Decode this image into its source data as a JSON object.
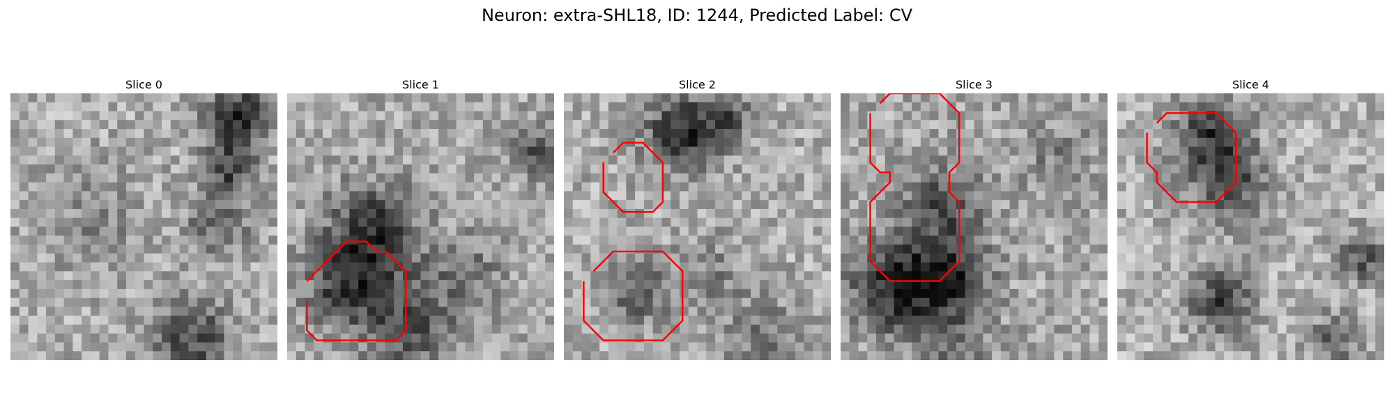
{
  "figure": {
    "title": "Neuron: extra-SHL18, ID: 1244, Predicted Label: CV"
  },
  "slices": [
    {
      "label": "Slice 0",
      "contours": []
    },
    {
      "label": "Slice 1",
      "contours": [
        [
          [
            21,
            2
          ],
          [
            24,
            2
          ],
          [
            25,
            3
          ],
          [
            25,
            6
          ],
          [
            25,
            11
          ],
          [
            24,
            12
          ],
          [
            21,
            12
          ],
          [
            19,
            12
          ],
          [
            18,
            12
          ],
          [
            16,
            10
          ],
          [
            16,
            9
          ],
          [
            15,
            8
          ],
          [
            15,
            6
          ],
          [
            16,
            5
          ],
          [
            18,
            3
          ],
          [
            19,
            2
          ]
        ]
      ]
    },
    {
      "label": "Slice 2",
      "contours": [
        [
          [
            7,
            4
          ],
          [
            10,
            4
          ],
          [
            11,
            5
          ],
          [
            12,
            6
          ],
          [
            12,
            9
          ],
          [
            11,
            10
          ],
          [
            10,
            10
          ],
          [
            7,
            10
          ],
          [
            6,
            9
          ],
          [
            5,
            8
          ],
          [
            5,
            6
          ],
          [
            6,
            5
          ]
        ],
        [
          [
            19,
            2
          ],
          [
            23,
            2
          ],
          [
            25,
            4
          ],
          [
            25,
            10
          ],
          [
            23,
            12
          ],
          [
            18,
            12
          ],
          [
            17,
            11
          ],
          [
            16,
            10
          ],
          [
            16,
            8
          ],
          [
            16,
            5
          ],
          [
            17,
            4
          ],
          [
            18,
            3
          ]
        ]
      ]
    },
    {
      "label": "Slice 3",
      "contours": [
        [
          [
            2,
            3
          ],
          [
            5,
            3
          ],
          [
            7,
            3
          ],
          [
            8,
            4
          ],
          [
            8,
            5
          ],
          [
            9,
            5
          ],
          [
            10,
            4
          ],
          [
            11,
            3
          ],
          [
            13,
            3
          ],
          [
            17,
            3
          ],
          [
            19,
            5
          ],
          [
            19,
            10
          ],
          [
            18,
            11
          ],
          [
            17,
            12
          ],
          [
            13,
            12
          ],
          [
            11,
            12
          ],
          [
            10,
            11
          ],
          [
            9,
            11
          ],
          [
            8,
            11
          ],
          [
            7,
            12
          ],
          [
            5,
            12
          ],
          [
            2,
            12
          ],
          [
            1,
            11
          ],
          [
            0,
            10
          ],
          [
            0,
            5
          ],
          [
            1,
            4
          ]
        ]
      ]
    },
    {
      "label": "Slice 4",
      "contours": [
        [
          [
            4,
            3
          ],
          [
            6,
            3
          ],
          [
            7,
            3
          ],
          [
            8,
            4
          ],
          [
            9,
            4
          ],
          [
            10,
            5
          ],
          [
            11,
            6
          ],
          [
            11,
            10
          ],
          [
            10,
            11
          ],
          [
            9,
            12
          ],
          [
            6,
            12
          ],
          [
            5,
            12
          ],
          [
            4,
            12
          ],
          [
            3,
            11
          ],
          [
            2,
            10
          ],
          [
            2,
            5
          ],
          [
            3,
            4
          ]
        ]
      ]
    }
  ],
  "colors": {
    "contour": "#ff0000",
    "title_text": "#000000",
    "background": "#ffffff"
  }
}
